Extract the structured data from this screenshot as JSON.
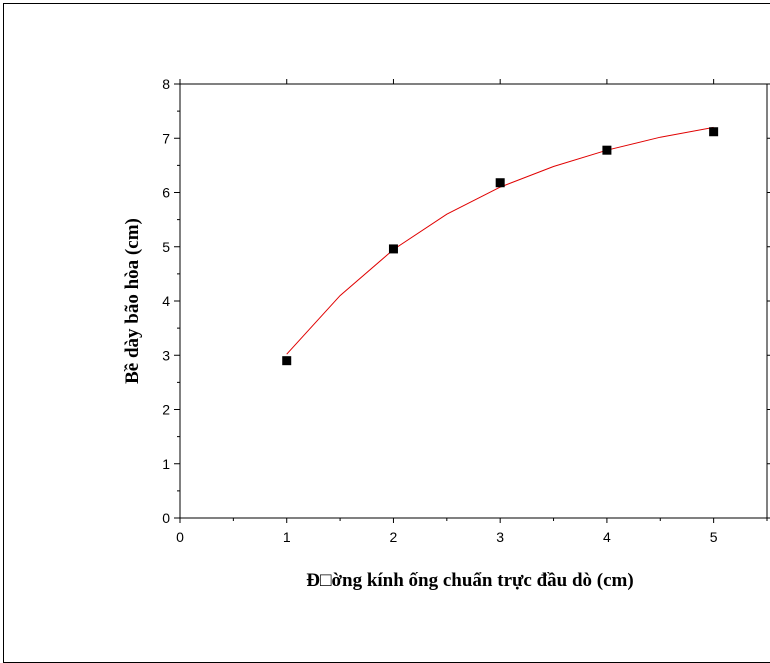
{
  "chart_data": {
    "type": "scatter",
    "title": "",
    "xlabel": "Đ□ờng kính ống chuẩn trực đầu dò (cm)",
    "ylabel": "Bề dày bão hòa (cm)",
    "xlim": [
      0,
      5.5
    ],
    "ylim": [
      0,
      8
    ],
    "xticks": [
      "0",
      "1",
      "2",
      "3",
      "4",
      "5"
    ],
    "yticks": [
      "0",
      "1",
      "2",
      "3",
      "4",
      "5",
      "6",
      "7",
      "8"
    ],
    "grid": false,
    "series": [
      {
        "type": "scatter",
        "color": "#000000",
        "marker": "square",
        "x": [
          1,
          2,
          3,
          4,
          5
        ],
        "y": [
          2.9,
          4.96,
          6.18,
          6.78,
          7.12
        ]
      },
      {
        "type": "line",
        "color": "#e00000",
        "fit": true,
        "x": [
          1,
          1.5,
          2,
          2.5,
          3,
          3.5,
          4,
          4.5,
          5
        ],
        "y": [
          3.02,
          4.1,
          4.95,
          5.6,
          6.1,
          6.48,
          6.78,
          7.02,
          7.2
        ]
      }
    ]
  }
}
